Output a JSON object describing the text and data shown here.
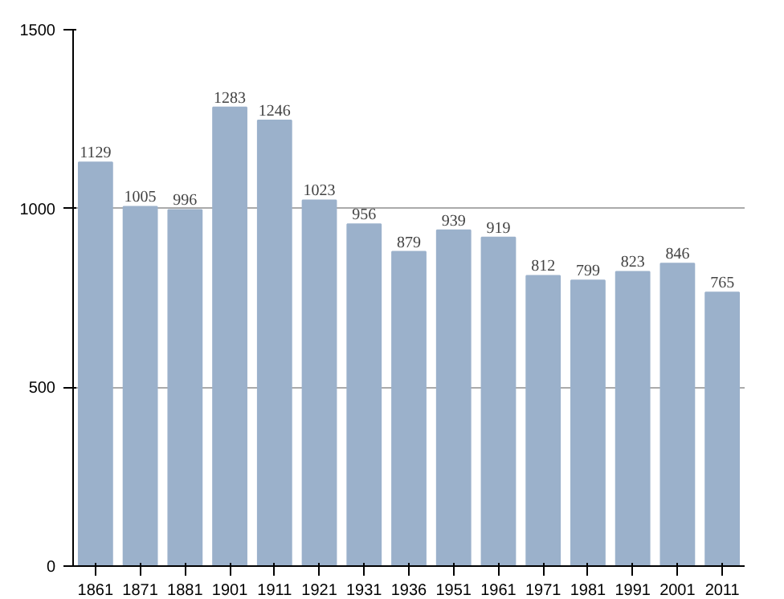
{
  "chart_data": {
    "type": "bar",
    "categories": [
      "1861",
      "1871",
      "1881",
      "1901",
      "1911",
      "1921",
      "1931",
      "1936",
      "1951",
      "1961",
      "1971",
      "1981",
      "1991",
      "2001",
      "2011"
    ],
    "values": [
      1129,
      1005,
      996,
      1283,
      1246,
      1023,
      956,
      879,
      939,
      919,
      812,
      799,
      823,
      846,
      765
    ],
    "color": "#9bb1cb",
    "ylim": [
      0,
      1500
    ],
    "yticks": [
      0,
      500,
      1000,
      1500
    ],
    "grid": "y",
    "data_labels": true
  }
}
